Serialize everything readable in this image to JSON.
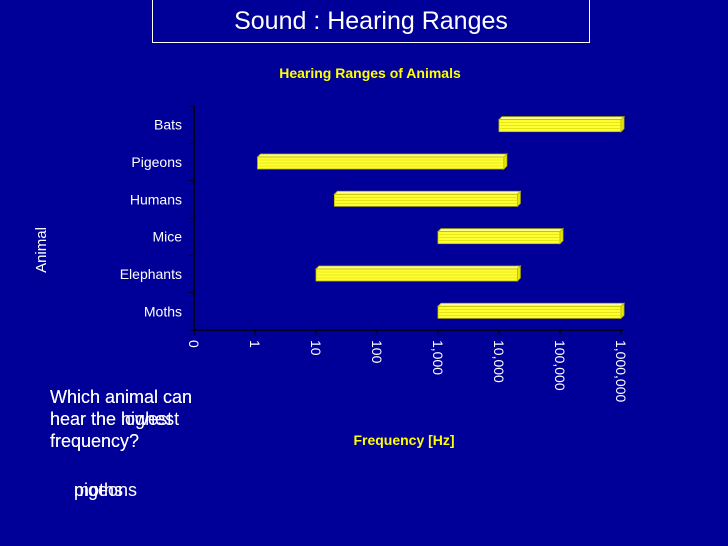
{
  "slide": {
    "title": "Sound : Hearing Ranges",
    "question_1": "Which animal can hear the lowest frequency?",
    "question_2": "Which animal can hear the highest frequency?",
    "answer_1": "pigeons",
    "answer_2": "moths"
  },
  "chart_data": {
    "type": "bar",
    "orientation": "horizontal-range",
    "title": "Hearing Ranges of Animals",
    "xlabel": "Frequency [Hz]",
    "ylabel": "Animal",
    "x_scale": "log",
    "xlim": [
      0.1,
      1000000
    ],
    "x_ticks": [
      "0",
      "1",
      "10",
      "100",
      "1,000",
      "10,000",
      "100,000",
      "1,000,000"
    ],
    "categories": [
      "Bats",
      "Pigeons",
      "Humans",
      "Mice",
      "Elephants",
      "Moths"
    ],
    "ranges": [
      {
        "label": "Bats",
        "low": 10000,
        "high": 1000000
      },
      {
        "label": "Pigeons",
        "low": 1.1,
        "high": 12000
      },
      {
        "label": "Humans",
        "low": 20,
        "high": 20000
      },
      {
        "label": "Mice",
        "low": 1000,
        "high": 100000
      },
      {
        "label": "Elephants",
        "low": 10,
        "high": 20000
      },
      {
        "label": "Moths",
        "low": 1000,
        "high": 1000000
      }
    ],
    "bar_color": "#ffff33",
    "bar_edge_color": "#b8b800",
    "text_color": "#ffffff",
    "title_color": "#ffff00",
    "grid": false
  }
}
